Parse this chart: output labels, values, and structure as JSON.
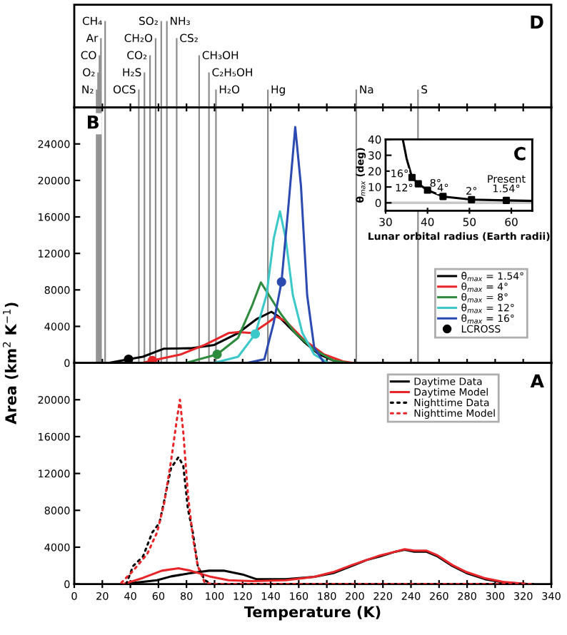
{
  "chart_data": [
    {
      "type": "line",
      "title": "B",
      "annotations": [
        "D"
      ],
      "ylabel": "Area (km$^{2}$ K$^{−1}$)",
      "xlim": [
        0,
        340
      ],
      "xticks": [
        0,
        20,
        40,
        60,
        80,
        100,
        120,
        140,
        160,
        180,
        200,
        220,
        240,
        260,
        280,
        300,
        320,
        340
      ],
      "ylim": [
        0,
        28000
      ],
      "yticks": [
        0,
        4000,
        8000,
        12000,
        16000,
        20000,
        24000
      ],
      "tick_labels": "y",
      "legend": "bottom right",
      "grid": false,
      "series": [
        {
          "name": "θ$_{max}$ = 1.54°",
          "color": "#000000",
          "x": [
            25,
            38.7,
            48.9,
            64,
            82.8,
            99.8,
            116.8,
            130.3,
            140.5,
            145.6,
            154.1,
            164.3,
            174.5,
            184.7,
            194.9
          ],
          "values": [
            0,
            400,
            670,
            1560,
            1600,
            1970,
            3270,
            4830,
            5600,
            5090,
            3790,
            2230,
            930,
            260,
            0
          ]
        },
        {
          "name": "θ$_{max}$ = 4°",
          "color": "#e8262a",
          "x": [
            49,
            55.7,
            76,
            93,
            110,
            117,
            127,
            137,
            144,
            150.7,
            164,
            178,
            191.5,
            198
          ],
          "values": [
            0,
            260,
            930,
            1970,
            3270,
            3370,
            3270,
            4310,
            5090,
            4570,
            2490,
            930,
            160,
            0
          ]
        },
        {
          "name": "θ$_{max}$ = 8°",
          "color": "#2e8b3e",
          "x": [
            79.4,
            101.8,
            116.8,
            127,
            133,
            138.8,
            147.3,
            157.5,
            171,
            184.7,
            194.9
          ],
          "values": [
            0,
            930,
            2750,
            6380,
            8820,
            7420,
            5350,
            3270,
            1450,
            260,
            0
          ]
        },
        {
          "name": "θ$_{max}$ = 12°",
          "color": "#3cc8c8",
          "x": [
            99.8,
            116.8,
            129,
            137,
            142.2,
            146.6,
            150.7,
            155.8,
            162.6,
            171,
            181
          ],
          "values": [
            0,
            670,
            3170,
            7420,
            13650,
            16610,
            13650,
            7420,
            3270,
            930,
            0
          ]
        },
        {
          "name": "θ$_{max}$ = 16°",
          "color": "#2c4bb0",
          "x": [
            123.6,
            135.5,
            142,
            147.7,
            152.4,
            157.5,
            161.6,
            166,
            171,
            178
          ],
          "values": [
            0,
            400,
            4300,
            8870,
            16760,
            25850,
            19360,
            7420,
            1710,
            0
          ]
        },
        {
          "name": "LCROSS",
          "type": "scatter",
          "marker": "circle",
          "color": "#000000",
          "x": [
            38.7,
            55.7,
            101.8,
            129,
            147.7
          ],
          "values": [
            400,
            260,
            930,
            3170,
            8870
          ],
          "colors": [
            "#000000",
            "#e8262a",
            "#2e8b3e",
            "#3cc8c8",
            "#2c4bb0"
          ]
        }
      ],
      "ref_lines": [
        {
          "axis": "x",
          "value": 16,
          "label": "N₂"
        },
        {
          "axis": "x",
          "value": 17,
          "label": "O₂"
        },
        {
          "axis": "x",
          "value": 18,
          "label": "CO"
        },
        {
          "axis": "x",
          "value": 19,
          "label": "Ar"
        },
        {
          "axis": "x",
          "value": 22,
          "label": "CH₄"
        },
        {
          "axis": "x",
          "value": 46,
          "label": "OCS"
        },
        {
          "axis": "x",
          "value": 50,
          "label": "H₂S"
        },
        {
          "axis": "x",
          "value": 54,
          "label": "CO₂"
        },
        {
          "axis": "x",
          "value": 58,
          "label": "CH₂O"
        },
        {
          "axis": "x",
          "value": 62,
          "label": "SO₂"
        },
        {
          "axis": "x",
          "value": 66,
          "label": "NH₃"
        },
        {
          "axis": "x",
          "value": 73,
          "label": "CS₂"
        },
        {
          "axis": "x",
          "value": 89,
          "label": "CH₃OH"
        },
        {
          "axis": "x",
          "value": 96,
          "label": "C₂H₅OH"
        },
        {
          "axis": "x",
          "value": 101,
          "label": "H₂O"
        },
        {
          "axis": "x",
          "value": 138,
          "label": "Hg"
        },
        {
          "axis": "x",
          "value": 201,
          "label": "Na"
        },
        {
          "axis": "x",
          "value": 245,
          "label": "S"
        }
      ]
    },
    {
      "type": "line",
      "title": "C",
      "xlabel": "Lunar orbital radius (Earth radii)",
      "ylabel": "θ$_{max}$ (deg)",
      "xlim": [
        30,
        65
      ],
      "xticks": [
        30,
        40,
        50,
        60
      ],
      "ylim": [
        -5,
        40
      ],
      "yticks": [
        0,
        10,
        20,
        30,
        40
      ],
      "grid": false,
      "legend": false,
      "ref_lines": [
        {
          "axis": "y",
          "value": 0,
          "color": "#c8c8c8"
        }
      ],
      "series": [
        {
          "color": "#000000",
          "x": [
            34.1,
            35,
            36.3,
            37.8,
            40,
            43.7,
            50.5,
            58.8,
            65
          ],
          "values": [
            40,
            28,
            16,
            12,
            8,
            4,
            2,
            1.54,
            1.2
          ]
        },
        {
          "type": "scatter",
          "marker": "square",
          "color": "#000000",
          "x": [
            36.3,
            37.8,
            40,
            43.7,
            50.5,
            58.8
          ],
          "values": [
            16,
            12,
            8,
            4,
            2,
            1.54
          ],
          "value_labels": [
            "16°",
            "12°",
            "8°",
            "4°",
            "2°",
            "Present\n1.54°"
          ]
        }
      ]
    },
    {
      "type": "line",
      "title": "A",
      "xlabel": "Temperature (K)",
      "xlim": [
        0,
        340
      ],
      "xticks": [
        0,
        20,
        40,
        60,
        80,
        100,
        120,
        140,
        160,
        180,
        200,
        220,
        240,
        260,
        280,
        300,
        320,
        340
      ],
      "ylim": [
        0,
        24000
      ],
      "yticks": [
        0,
        4000,
        8000,
        12000,
        16000,
        20000
      ],
      "legend": "top right",
      "grid": false,
      "series": [
        {
          "name": "Daytime Data",
          "color": "#000000",
          "line_style": "solid",
          "x": [
            35,
            59,
            69,
            83,
            96,
            106.5,
            120,
            130,
            150.7,
            171,
            184.6,
            198,
            208,
            218,
            229,
            235.5,
            242.3,
            250.8,
            259,
            269.4,
            279.6,
            293,
            306.8,
            323.7
          ],
          "values": [
            0,
            410,
            830,
            1190,
            1450,
            1450,
            1040,
            520,
            520,
            780,
            1190,
            1970,
            2590,
            3000,
            3520,
            3730,
            3520,
            3520,
            3000,
            1970,
            1190,
            520,
            155,
            0
          ]
        },
        {
          "name": "Daytime Model",
          "color": "#e8262a",
          "line_style": "solid",
          "x": [
            35,
            49,
            62.4,
            74.3,
            82.8,
            96.4,
            110,
            127,
            150.7,
            171,
            184.6,
            198,
            208,
            218,
            229,
            235.5,
            242.3,
            250.8,
            259,
            269.4,
            279.6,
            293,
            306.8,
            323.7
          ],
          "values": [
            0,
            670,
            1450,
            1710,
            1450,
            830,
            410,
            310,
            410,
            780,
            1300,
            2070,
            2590,
            3110,
            3520,
            3780,
            3630,
            3630,
            3110,
            2070,
            1300,
            620,
            210,
            0
          ]
        },
        {
          "name": "Nighttime Data",
          "color": "#000000",
          "line_style": "dotted",
          "x": [
            37,
            42,
            49,
            55.6,
            60.7,
            64,
            69,
            74.3,
            77.7,
            81,
            84.5,
            88,
            93,
            98,
            327
          ],
          "values": [
            0,
            1970,
            3000,
            5600,
            6630,
            8960,
            12590,
            13780,
            12850,
            8180,
            5600,
            1970,
            410,
            0,
            0
          ]
        },
        {
          "name": "Nighttime Model",
          "color": "#e8262a",
          "line_style": "dotted",
          "x": [
            33.6,
            42,
            52,
            59,
            64,
            69,
            73.3,
            75.3,
            77.7,
            81,
            84.5,
            88,
            93,
            98,
            327
          ],
          "values": [
            150,
            1450,
            3260,
            5600,
            8700,
            13360,
            18030,
            20000,
            16470,
            9740,
            5080,
            1970,
            150,
            0,
            0
          ]
        }
      ]
    }
  ]
}
